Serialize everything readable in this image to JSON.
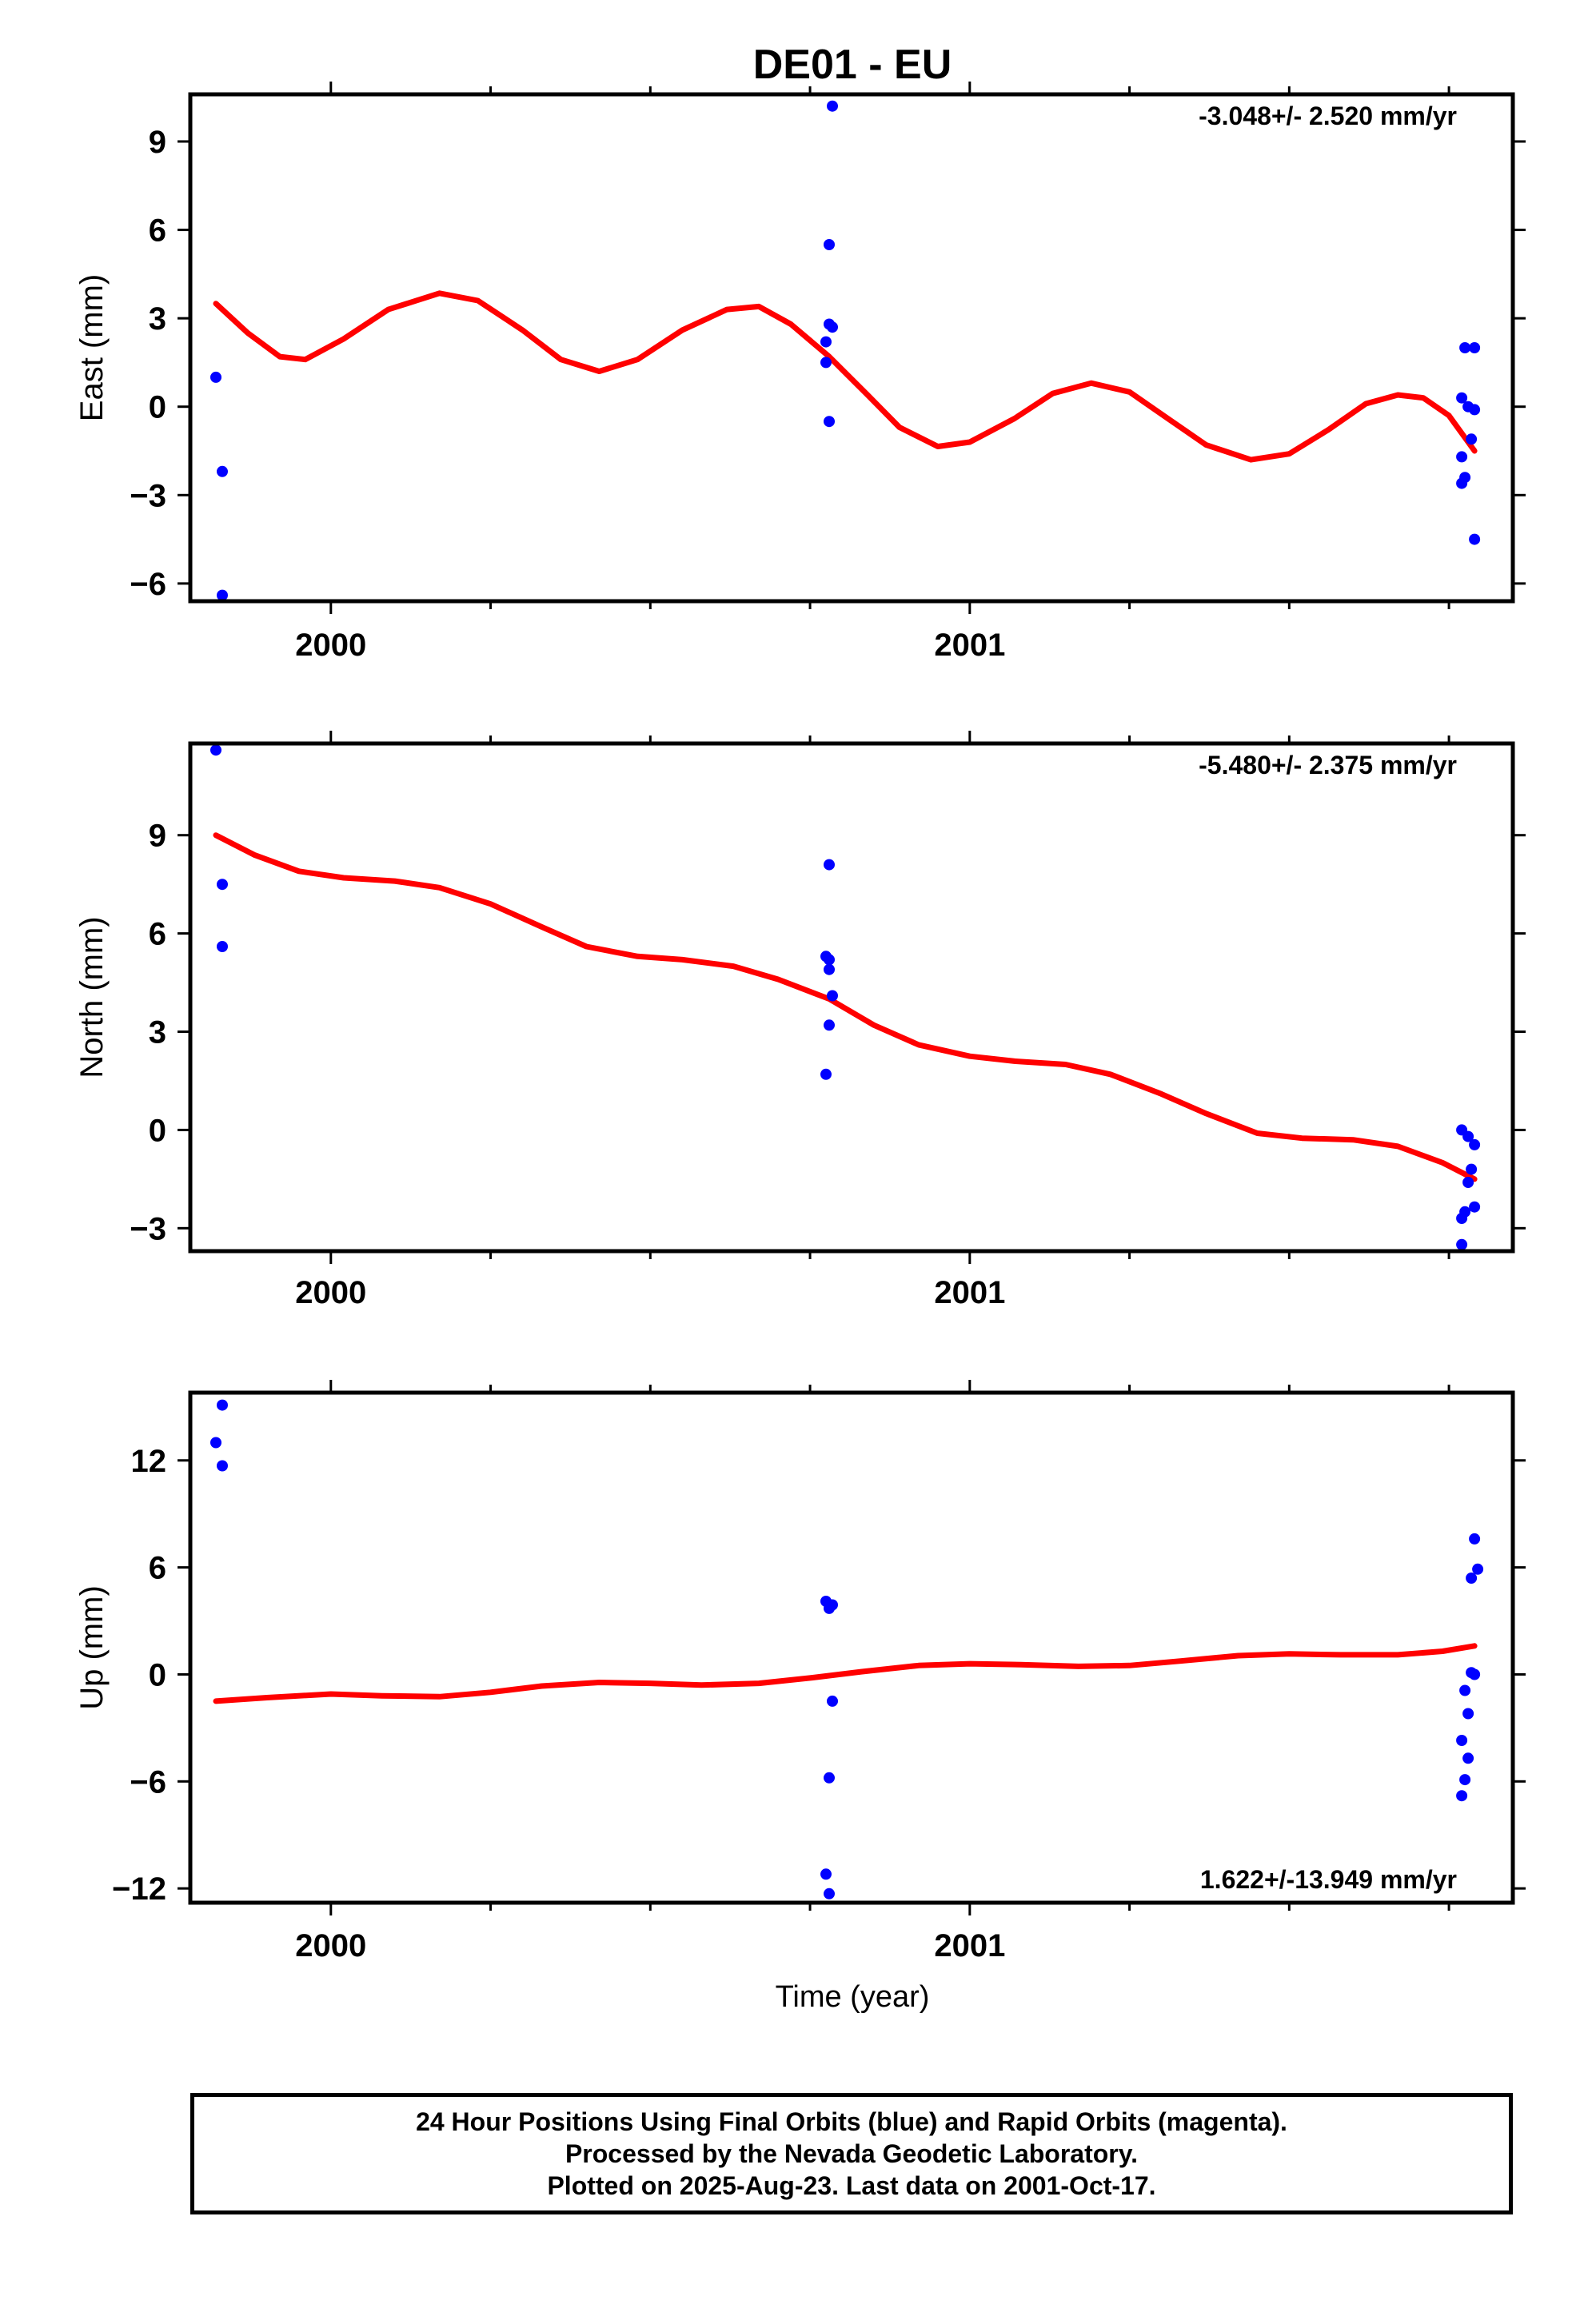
{
  "title": "DE01 - EU",
  "x_axis": {
    "label": "Time (year)",
    "range": [
      1999.78,
      2001.85
    ],
    "major_ticks": [
      2000,
      2001
    ],
    "minor_step": 0.25
  },
  "colors": {
    "fit": "#ff0000",
    "final_orbits": "#0000ff",
    "frame": "#000000"
  },
  "footer": {
    "lines": [
      "24 Hour Positions Using Final Orbits (blue) and Rapid Orbits (magenta).",
      "Processed by the Nevada Geodetic Laboratory.",
      "Plotted on 2025-Aug-23. Last data on 2001-Oct-17."
    ]
  },
  "chart_data": [
    {
      "type": "scatter",
      "name": "east",
      "ylabel": "East (mm)",
      "ylim": [
        -6.6,
        10.6
      ],
      "yticks": [
        -6,
        -3,
        0,
        3,
        6,
        9
      ],
      "rate_label": "-3.048+/- 2.520 mm/yr",
      "rate_label_position": "top-right",
      "points": [
        {
          "x": 1999.82,
          "y": 1.0
        },
        {
          "x": 1999.83,
          "y": -2.2
        },
        {
          "x": 1999.83,
          "y": -6.4
        },
        {
          "x": 2000.78,
          "y": 5.5
        },
        {
          "x": 2000.785,
          "y": 10.2
        },
        {
          "x": 2000.78,
          "y": 2.8
        },
        {
          "x": 2000.785,
          "y": 2.7
        },
        {
          "x": 2000.775,
          "y": 2.2
        },
        {
          "x": 2000.775,
          "y": 1.5
        },
        {
          "x": 2000.78,
          "y": -0.5
        },
        {
          "x": 2001.77,
          "y": 0.3
        },
        {
          "x": 2001.775,
          "y": 2.0
        },
        {
          "x": 2001.79,
          "y": 2.0
        },
        {
          "x": 2001.78,
          "y": 0.0
        },
        {
          "x": 2001.79,
          "y": -0.1
        },
        {
          "x": 2001.77,
          "y": -1.7
        },
        {
          "x": 2001.785,
          "y": -1.1
        },
        {
          "x": 2001.775,
          "y": -2.4
        },
        {
          "x": 2001.77,
          "y": -2.6
        },
        {
          "x": 2001.79,
          "y": -4.5
        }
      ],
      "fit_curve": [
        {
          "x": 1999.82,
          "y": 3.5
        },
        {
          "x": 1999.87,
          "y": 2.5
        },
        {
          "x": 1999.92,
          "y": 1.7
        },
        {
          "x": 1999.96,
          "y": 1.6
        },
        {
          "x": 2000.02,
          "y": 2.3
        },
        {
          "x": 2000.09,
          "y": 3.3
        },
        {
          "x": 2000.17,
          "y": 3.85
        },
        {
          "x": 2000.23,
          "y": 3.6
        },
        {
          "x": 2000.3,
          "y": 2.6
        },
        {
          "x": 2000.36,
          "y": 1.6
        },
        {
          "x": 2000.42,
          "y": 1.2
        },
        {
          "x": 2000.48,
          "y": 1.6
        },
        {
          "x": 2000.55,
          "y": 2.6
        },
        {
          "x": 2000.62,
          "y": 3.3
        },
        {
          "x": 2000.67,
          "y": 3.4
        },
        {
          "x": 2000.72,
          "y": 2.8
        },
        {
          "x": 2000.78,
          "y": 1.7
        },
        {
          "x": 2000.84,
          "y": 0.4
        },
        {
          "x": 2000.89,
          "y": -0.7
        },
        {
          "x": 2000.95,
          "y": -1.35
        },
        {
          "x": 2001.0,
          "y": -1.2
        },
        {
          "x": 2001.07,
          "y": -0.4
        },
        {
          "x": 2001.13,
          "y": 0.45
        },
        {
          "x": 2001.19,
          "y": 0.8
        },
        {
          "x": 2001.25,
          "y": 0.5
        },
        {
          "x": 2001.31,
          "y": -0.4
        },
        {
          "x": 2001.37,
          "y": -1.3
        },
        {
          "x": 2001.44,
          "y": -1.8
        },
        {
          "x": 2001.5,
          "y": -1.6
        },
        {
          "x": 2001.56,
          "y": -0.8
        },
        {
          "x": 2001.62,
          "y": 0.1
        },
        {
          "x": 2001.67,
          "y": 0.4
        },
        {
          "x": 2001.71,
          "y": 0.3
        },
        {
          "x": 2001.75,
          "y": -0.3
        },
        {
          "x": 2001.79,
          "y": -1.5
        }
      ]
    },
    {
      "type": "scatter",
      "name": "north",
      "ylabel": "North (mm)",
      "ylim": [
        -3.7,
        11.8
      ],
      "yticks": [
        -3,
        0,
        3,
        6,
        9
      ],
      "rate_label": "-5.480+/- 2.375 mm/yr",
      "rate_label_position": "top-right",
      "points": [
        {
          "x": 1999.82,
          "y": 11.6
        },
        {
          "x": 1999.83,
          "y": 7.5
        },
        {
          "x": 1999.83,
          "y": 5.6
        },
        {
          "x": 2000.78,
          "y": 8.1
        },
        {
          "x": 2000.775,
          "y": 5.3
        },
        {
          "x": 2000.78,
          "y": 5.2
        },
        {
          "x": 2000.78,
          "y": 4.9
        },
        {
          "x": 2000.785,
          "y": 4.1
        },
        {
          "x": 2000.78,
          "y": 3.2
        },
        {
          "x": 2000.775,
          "y": 1.7
        },
        {
          "x": 2001.77,
          "y": 0.0
        },
        {
          "x": 2001.78,
          "y": -0.2
        },
        {
          "x": 2001.79,
          "y": -0.45
        },
        {
          "x": 2001.785,
          "y": -1.2
        },
        {
          "x": 2001.78,
          "y": -1.6
        },
        {
          "x": 2001.79,
          "y": -2.35
        },
        {
          "x": 2001.775,
          "y": -2.5
        },
        {
          "x": 2001.77,
          "y": -2.7
        },
        {
          "x": 2001.77,
          "y": -3.5
        }
      ],
      "fit_curve": [
        {
          "x": 1999.82,
          "y": 9.0
        },
        {
          "x": 1999.88,
          "y": 8.4
        },
        {
          "x": 1999.95,
          "y": 7.9
        },
        {
          "x": 2000.02,
          "y": 7.7
        },
        {
          "x": 2000.1,
          "y": 7.6
        },
        {
          "x": 2000.17,
          "y": 7.4
        },
        {
          "x": 2000.25,
          "y": 6.9
        },
        {
          "x": 2000.33,
          "y": 6.2
        },
        {
          "x": 2000.4,
          "y": 5.6
        },
        {
          "x": 2000.48,
          "y": 5.3
        },
        {
          "x": 2000.55,
          "y": 5.2
        },
        {
          "x": 2000.63,
          "y": 5.0
        },
        {
          "x": 2000.7,
          "y": 4.6
        },
        {
          "x": 2000.78,
          "y": 4.0
        },
        {
          "x": 2000.85,
          "y": 3.2
        },
        {
          "x": 2000.92,
          "y": 2.6
        },
        {
          "x": 2001.0,
          "y": 2.25
        },
        {
          "x": 2001.07,
          "y": 2.1
        },
        {
          "x": 2001.15,
          "y": 2.0
        },
        {
          "x": 2001.22,
          "y": 1.7
        },
        {
          "x": 2001.3,
          "y": 1.1
        },
        {
          "x": 2001.37,
          "y": 0.5
        },
        {
          "x": 2001.45,
          "y": -0.1
        },
        {
          "x": 2001.52,
          "y": -0.25
        },
        {
          "x": 2001.6,
          "y": -0.3
        },
        {
          "x": 2001.67,
          "y": -0.5
        },
        {
          "x": 2001.74,
          "y": -1.0
        },
        {
          "x": 2001.79,
          "y": -1.5
        }
      ]
    },
    {
      "type": "scatter",
      "name": "up",
      "ylabel": "Up (mm)",
      "ylim": [
        -12.8,
        15.8
      ],
      "yticks": [
        -12,
        -6,
        0,
        6,
        12
      ],
      "rate_label": "1.622+/-13.949 mm/yr",
      "rate_label_position": "bottom-right",
      "points": [
        {
          "x": 1999.83,
          "y": 15.1
        },
        {
          "x": 1999.82,
          "y": 13.0
        },
        {
          "x": 1999.83,
          "y": 11.7
        },
        {
          "x": 2000.775,
          "y": 4.1
        },
        {
          "x": 2000.78,
          "y": 3.7
        },
        {
          "x": 2000.785,
          "y": 3.9
        },
        {
          "x": 2000.785,
          "y": -1.5
        },
        {
          "x": 2000.78,
          "y": -5.8
        },
        {
          "x": 2000.775,
          "y": -11.2
        },
        {
          "x": 2000.78,
          "y": -12.3
        },
        {
          "x": 2001.79,
          "y": 7.6
        },
        {
          "x": 2001.795,
          "y": 5.9
        },
        {
          "x": 2001.785,
          "y": 5.4
        },
        {
          "x": 2001.785,
          "y": 0.1
        },
        {
          "x": 2001.79,
          "y": 0.0
        },
        {
          "x": 2001.775,
          "y": -0.9
        },
        {
          "x": 2001.78,
          "y": -2.2
        },
        {
          "x": 2001.77,
          "y": -3.7
        },
        {
          "x": 2001.78,
          "y": -4.7
        },
        {
          "x": 2001.775,
          "y": -5.9
        },
        {
          "x": 2001.77,
          "y": -6.8
        }
      ],
      "fit_curve": [
        {
          "x": 1999.82,
          "y": -1.5
        },
        {
          "x": 1999.9,
          "y": -1.3
        },
        {
          "x": 2000.0,
          "y": -1.1
        },
        {
          "x": 2000.08,
          "y": -1.2
        },
        {
          "x": 2000.17,
          "y": -1.25
        },
        {
          "x": 2000.25,
          "y": -1.0
        },
        {
          "x": 2000.33,
          "y": -0.65
        },
        {
          "x": 2000.42,
          "y": -0.45
        },
        {
          "x": 2000.5,
          "y": -0.5
        },
        {
          "x": 2000.58,
          "y": -0.6
        },
        {
          "x": 2000.67,
          "y": -0.5
        },
        {
          "x": 2000.75,
          "y": -0.2
        },
        {
          "x": 2000.83,
          "y": 0.15
        },
        {
          "x": 2000.92,
          "y": 0.5
        },
        {
          "x": 2001.0,
          "y": 0.6
        },
        {
          "x": 2001.08,
          "y": 0.55
        },
        {
          "x": 2001.17,
          "y": 0.45
        },
        {
          "x": 2001.25,
          "y": 0.5
        },
        {
          "x": 2001.33,
          "y": 0.75
        },
        {
          "x": 2001.42,
          "y": 1.05
        },
        {
          "x": 2001.5,
          "y": 1.15
        },
        {
          "x": 2001.58,
          "y": 1.1
        },
        {
          "x": 2001.67,
          "y": 1.1
        },
        {
          "x": 2001.74,
          "y": 1.3
        },
        {
          "x": 2001.79,
          "y": 1.6
        }
      ]
    }
  ]
}
